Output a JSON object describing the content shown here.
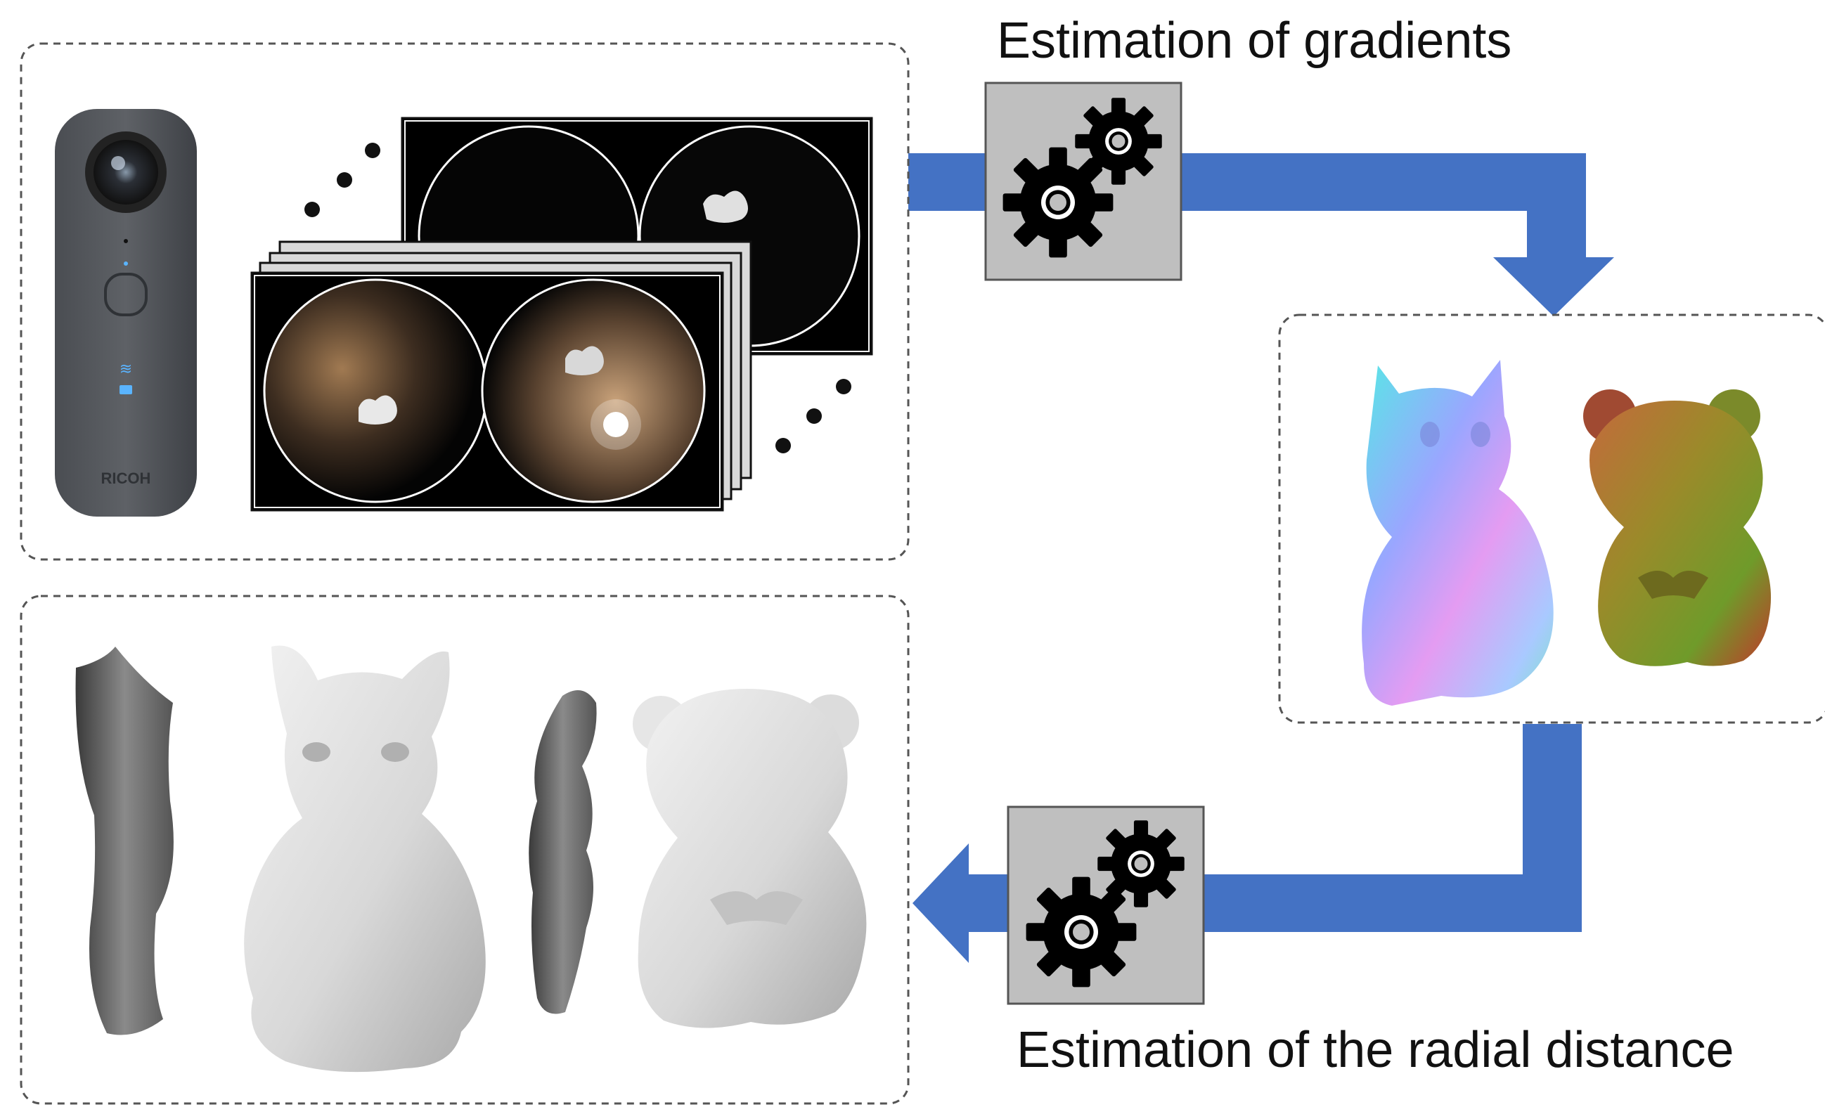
{
  "labels": {
    "gradients": "Estimation of gradients",
    "radial": "Estimation of the radial distance"
  },
  "camera": {
    "brand": "RICOH"
  },
  "colors": {
    "flow_arrow": "#4472C4",
    "process_box": "#BFBFBF",
    "gear": "#000000",
    "panel_border": "#555555"
  },
  "icons": {
    "process_icon": "gears-icon",
    "camera_icon": "360-camera-icon"
  }
}
